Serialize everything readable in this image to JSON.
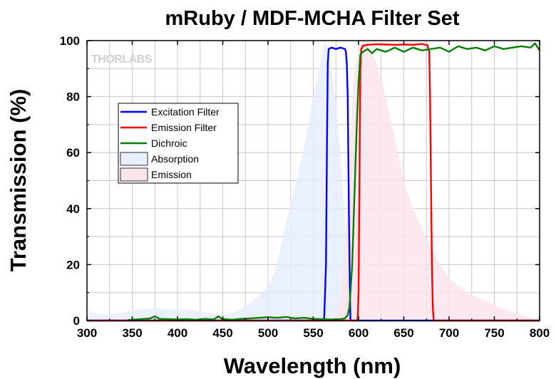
{
  "chart_data": {
    "type": "line",
    "title": "mRuby / MDF-MCHA Filter Set",
    "xlabel": "Wavelength (nm)",
    "ylabel": "Transmission (%)",
    "xlim": [
      300,
      800
    ],
    "ylim": [
      0,
      100
    ],
    "xticks": [
      300,
      350,
      400,
      450,
      500,
      550,
      600,
      650,
      700,
      750,
      800
    ],
    "yticks": [
      0,
      20,
      40,
      60,
      80,
      100
    ],
    "grid": true,
    "legend_position": "upper-left",
    "watermark": "THORLABS",
    "series": [
      {
        "name": "Excitation Filter",
        "style": "line",
        "color": "#0000ff",
        "x": [
          300,
          562,
          564,
          565,
          566,
          567,
          570,
          575,
          580,
          585,
          586,
          587,
          588,
          589,
          590,
          591,
          800
        ],
        "y": [
          0,
          0,
          20,
          60,
          92,
          97,
          97.5,
          97,
          97.5,
          97,
          96,
          92,
          80,
          50,
          20,
          0,
          0
        ]
      },
      {
        "name": "Emission Filter",
        "style": "line",
        "color": "#ff0000",
        "x": [
          300,
          599,
          600,
          601,
          602,
          603,
          605,
          610,
          620,
          630,
          640,
          650,
          660,
          670,
          676,
          678,
          679,
          680,
          681,
          682,
          683,
          800
        ],
        "y": [
          0,
          0,
          10,
          50,
          90,
          97,
          98.2,
          98.5,
          98.7,
          98.6,
          98.5,
          98.6,
          98.5,
          98.8,
          98.4,
          96,
          80,
          50,
          20,
          5,
          0,
          0
        ]
      },
      {
        "name": "Dichroic",
        "style": "line",
        "color": "#008000",
        "x": [
          345,
          360,
          370,
          375,
          380,
          390,
          400,
          410,
          420,
          430,
          440,
          445,
          450,
          460,
          470,
          480,
          490,
          500,
          510,
          520,
          530,
          540,
          550,
          560,
          570,
          580,
          585,
          588,
          590,
          593,
          595,
          597,
          598,
          600,
          602,
          605,
          610,
          615,
          620,
          630,
          640,
          650,
          660,
          670,
          680,
          690,
          700,
          710,
          720,
          730,
          740,
          750,
          760,
          770,
          780,
          790,
          795,
          800
        ],
        "y": [
          0.2,
          0.5,
          0.8,
          1.5,
          0.6,
          0.5,
          0.4,
          0.5,
          0.3,
          0.6,
          0.4,
          1.5,
          0.5,
          0.3,
          0.6,
          0.8,
          1.0,
          1.2,
          1.0,
          1.3,
          0.8,
          1.0,
          0.6,
          0.5,
          0.4,
          0.5,
          0.8,
          2,
          5,
          20,
          40,
          60,
          70,
          85,
          95,
          96,
          97,
          95.5,
          97,
          96,
          97.5,
          96,
          97.5,
          96.5,
          97,
          97.5,
          96,
          98,
          97,
          97.5,
          96.5,
          98,
          97,
          97.5,
          98,
          97.5,
          99,
          96.5
        ]
      },
      {
        "name": "Absorption",
        "style": "area",
        "color": "#e8eefb",
        "x": [
          300,
          303,
          306,
          310,
          320,
          340,
          360,
          375,
          390,
          410,
          430,
          450,
          460,
          480,
          500,
          510,
          520,
          530,
          540,
          550,
          555,
          560,
          563,
          566,
          570,
          575,
          580,
          585,
          588,
          590,
          595,
          600,
          610,
          620,
          800
        ],
        "y": [
          2,
          4,
          3,
          2.5,
          2,
          3,
          4,
          4.5,
          4,
          4,
          3,
          2,
          2.5,
          6,
          12,
          20,
          35,
          48,
          62,
          80,
          88,
          96,
          99,
          98,
          90,
          78,
          60,
          35,
          20,
          10,
          3,
          1,
          0.3,
          0,
          0
        ]
      },
      {
        "name": "Emission",
        "style": "area",
        "color": "#fbe5ed",
        "x": [
          300,
          570,
          575,
          580,
          585,
          590,
          595,
          600,
          605,
          610,
          620,
          630,
          640,
          650,
          660,
          670,
          680,
          690,
          700,
          720,
          740,
          760,
          780,
          790,
          800
        ],
        "y": [
          0,
          0,
          2,
          8,
          25,
          60,
          88,
          98,
          100,
          99,
          92,
          80,
          65,
          50,
          40,
          33,
          26,
          20,
          15,
          10,
          7,
          4,
          2,
          1,
          0
        ]
      }
    ]
  }
}
